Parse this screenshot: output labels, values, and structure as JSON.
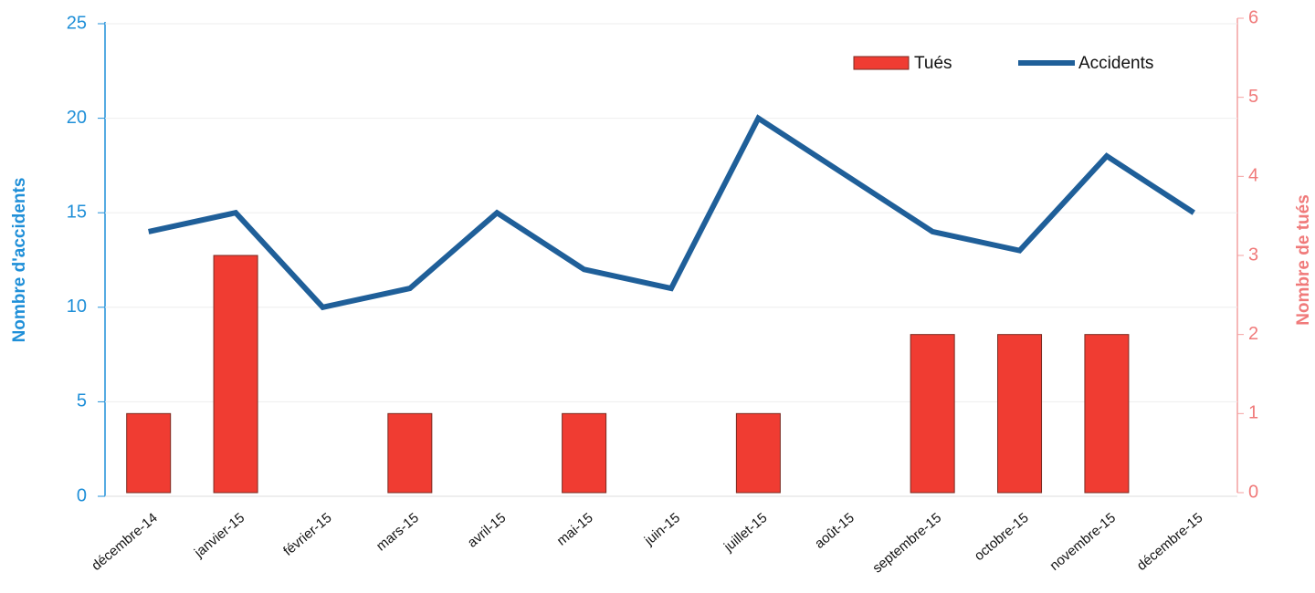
{
  "chart_data": {
    "type": "bar_line",
    "ylabel": "Nombre d'accidents",
    "y2label": "Nombre de tués",
    "categories": [
      "décembre-14",
      "janvier-15",
      "février-15",
      "mars-15",
      "avril-15",
      "mai-15",
      "juin-15",
      "juillet-15",
      "août-15",
      "septembre-15",
      "octobre-15",
      "novembre-15",
      "décembre-15"
    ],
    "series": [
      {
        "name": "Tués",
        "type": "bar",
        "axis": "y2",
        "color": "#f03c32",
        "values": [
          1,
          3,
          0,
          1,
          0,
          1,
          0,
          1,
          0,
          2,
          2,
          2,
          0
        ]
      },
      {
        "name": "Accidents",
        "type": "line",
        "axis": "y",
        "color": "#1f5f99",
        "values": [
          14,
          15,
          10,
          11,
          15,
          12,
          11,
          20,
          17,
          14,
          13,
          18,
          15
        ]
      }
    ],
    "ylim": [
      0,
      25
    ],
    "yticks": [
      0,
      5,
      10,
      15,
      20,
      25
    ],
    "y2lim": [
      0,
      6
    ],
    "y2ticks": [
      0,
      1,
      2,
      3,
      4,
      5,
      6
    ],
    "grid": true,
    "legend": "upper right"
  }
}
